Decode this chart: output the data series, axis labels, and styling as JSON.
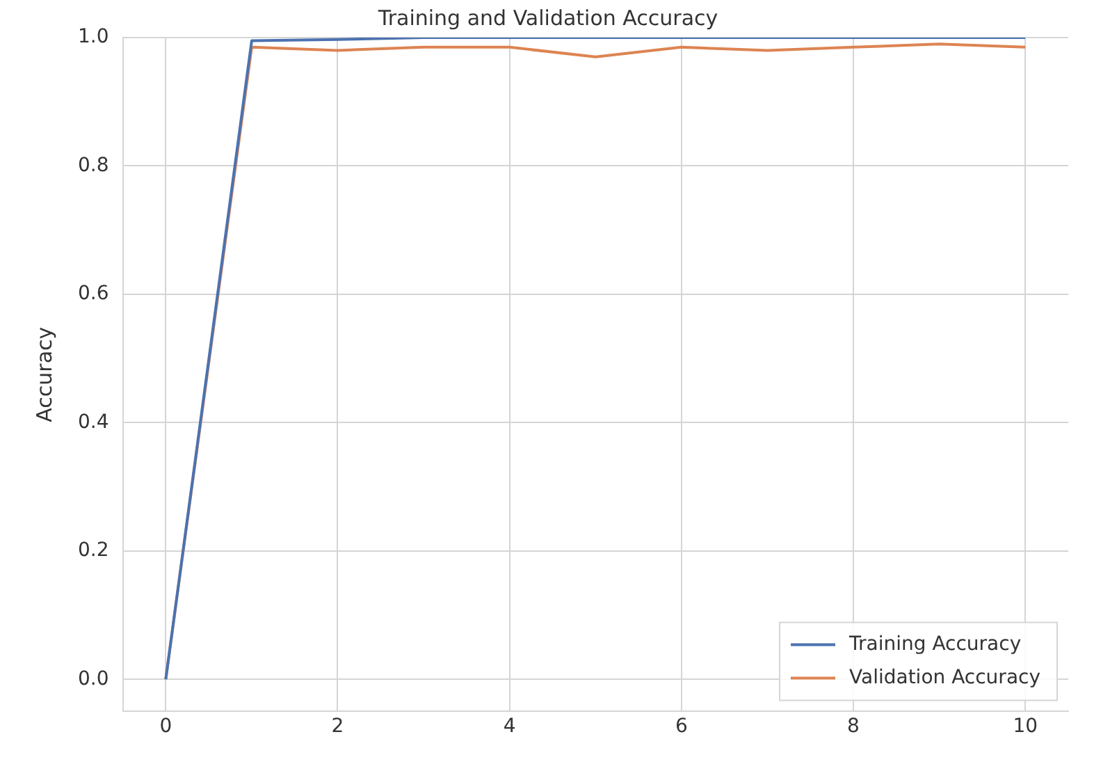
{
  "chart_data": {
    "type": "line",
    "title": "Training and Validation Accuracy",
    "ylabel": "Accuracy",
    "x": [
      0,
      1,
      2,
      3,
      4,
      5,
      6,
      7,
      8,
      9,
      10
    ],
    "series": [
      {
        "name": "Training Accuracy",
        "color": "#4c72b0",
        "values": [
          0.0,
          0.995,
          0.997,
          1.0,
          1.0,
          1.0,
          1.0,
          1.0,
          1.0,
          1.0,
          1.0
        ]
      },
      {
        "name": "Validation Accuracy",
        "color": "#dd8452",
        "values": [
          0.0,
          0.985,
          0.98,
          0.985,
          0.985,
          0.97,
          0.985,
          0.98,
          0.985,
          0.99,
          0.985
        ]
      }
    ],
    "xlim": [
      -0.5,
      10.5
    ],
    "xticks": [
      0,
      2,
      4,
      6,
      8,
      10
    ],
    "ylim": [
      -0.05,
      1.0
    ],
    "yticks": [
      {
        "value": 0,
        "label": "0.0"
      },
      0.2,
      0.4,
      0.6,
      0.8,
      {
        "value": 1,
        "label": "1.0"
      }
    ],
    "grid": true,
    "legend": "bottom right",
    "marker": "none",
    "line_style": "solid"
  }
}
